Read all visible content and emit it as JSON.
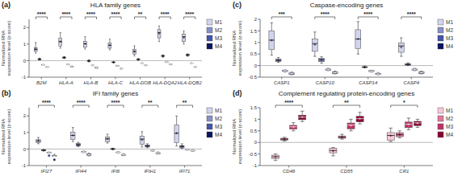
{
  "chart_data": [
    {
      "type": "box",
      "panel_label": "(a)",
      "title": "HLA family genes",
      "ylabel": "Normalized RNA\nexpression level (z-score)",
      "categories": [
        "B2M",
        "HLA-A",
        "HLA-B",
        "HLA-C",
        "HLA-DOB",
        "HLA-DQA2",
        "HLA-DQB2"
      ],
      "significance": [
        "****",
        "****",
        "****",
        "****",
        "**",
        "****",
        "****"
      ],
      "series": [
        {
          "name": "M1",
          "color": "#d0d4ec",
          "values": [
            {
              "whislo": 0.45,
              "q1": 0.5625,
              "med": 0.675,
              "q3": 0.7875,
              "whishi": 1.1,
              "mean": 0.7
            },
            {
              "whislo": 0.75,
              "q1": 0.875,
              "med": 1.15,
              "q3": 1.3625,
              "whishi": 1.7,
              "mean": 1.15
            },
            {
              "whislo": 0.7,
              "q1": 0.8075,
              "med": 1.015,
              "q3": 1.1625,
              "whishi": 1.45,
              "mean": 1.021667
            },
            {
              "whislo": 0.65,
              "q1": 0.75,
              "med": 0.925,
              "q3": 1.0625,
              "whishi": 1.3,
              "mean": 0.933333
            },
            {
              "whislo": 0.28,
              "q1": 0.4,
              "med": 0.55,
              "q3": 0.675,
              "whishi": 0.9,
              "mean": 0.554286
            },
            {
              "whislo": 1.15,
              "q1": 1.375,
              "med": 1.7,
              "q3": 1.875,
              "whishi": 2.1,
              "mean": 1.635714
            },
            {
              "whislo": 1.0,
              "q1": 1.15,
              "med": 1.45,
              "q3": 1.6,
              "whishi": 1.8,
              "mean": 1.392857
            }
          ]
        },
        {
          "name": "M2",
          "color": "#8890c8",
          "values": [
            {
              "whislo": 0.04,
              "q1": 0.05,
              "med": 0.08,
              "q3": 0.12,
              "whishi": 0.15,
              "mean": 0.088
            },
            {
              "whislo": 0.12,
              "q1": 0.15,
              "med": 0.18,
              "q3": 0.22,
              "whishi": 0.25,
              "mean": 0.184
            },
            {
              "whislo": -0.08,
              "q1": -0.05,
              "med": -0.02,
              "q3": 0.02,
              "whishi": 0.05,
              "mean": -0.016
            },
            {
              "whislo": -0.15,
              "q1": -0.12,
              "med": -0.1,
              "q3": -0.08,
              "whishi": -0.05,
              "mean": -0.1
            },
            {
              "whislo": 0.02,
              "q1": 0.05,
              "med": 0.08,
              "q3": 0.1,
              "whishi": 0.12,
              "mean": 0.074
            },
            {
              "whislo": 0.2,
              "q1": 0.25,
              "med": 0.28,
              "q3": 0.32,
              "whishi": 0.35,
              "mean": 0.28
            },
            {
              "whislo": 0.26,
              "q1": 0.3,
              "med": 0.34,
              "q3": 0.38,
              "whishi": 0.42,
              "mean": 0.34
            }
          ]
        },
        {
          "name": "M3",
          "color": "#4455aa",
          "values": [
            {
              "whislo": -0.28,
              "q1": -0.265,
              "med": -0.255,
              "q3": -0.2425,
              "whishi": -0.22,
              "mean": -0.2525
            },
            {
              "whislo": -0.26,
              "q1": -0.245,
              "med": -0.23,
              "q3": -0.215,
              "whishi": -0.2,
              "mean": -0.23
            },
            {
              "whislo": -0.32,
              "q1": -0.305,
              "med": -0.29,
              "q3": -0.2725,
              "whishi": -0.25,
              "mean": -0.2875
            },
            {
              "whislo": -0.35,
              "q1": -0.3275,
              "med": -0.31,
              "q3": -0.295,
              "whishi": -0.28,
              "mean": -0.3125
            },
            {
              "whislo": -0.18,
              "q1": -0.165,
              "med": -0.155,
              "q3": -0.1425,
              "whishi": -0.12,
              "mean": -0.1525
            },
            {
              "whislo": -0.12,
              "q1": -0.105,
              "med": -0.09,
              "q3": -0.075,
              "whishi": -0.06,
              "mean": -0.09
            },
            {
              "whislo": -0.18,
              "q1": -0.165,
              "med": -0.155,
              "q3": -0.1425,
              "whishi": -0.12,
              "mean": -0.1525
            }
          ]
        },
        {
          "name": "M4",
          "color": "#0a1560",
          "values": [
            {
              "whislo": -0.42,
              "q1": -0.405,
              "med": -0.39,
              "q3": -0.3725,
              "whishi": -0.35,
              "mean": -0.3875
            },
            {
              "whislo": -0.4,
              "q1": -0.385,
              "med": -0.365,
              "q3": -0.3425,
              "whishi": -0.32,
              "mean": -0.3625
            },
            {
              "whislo": -0.48,
              "q1": -0.4575,
              "med": -0.435,
              "q3": -0.41,
              "whishi": -0.38,
              "mean": -0.4325
            },
            {
              "whislo": -0.52,
              "q1": -0.505,
              "med": -0.49,
              "q3": -0.47,
              "whishi": -0.44,
              "mean": -0.485
            },
            {
              "whislo": -0.32,
              "q1": -0.305,
              "med": -0.29,
              "q3": -0.2725,
              "whishi": -0.25,
              "mean": -0.2875
            },
            {
              "whislo": -0.26,
              "q1": -0.245,
              "med": -0.23,
              "q3": -0.215,
              "whishi": -0.2,
              "mean": -0.23
            },
            {
              "whislo": -0.42,
              "q1": -0.405,
              "med": -0.39,
              "q3": -0.3725,
              "whishi": -0.35,
              "mean": -0.3875
            }
          ]
        }
      ],
      "hline": 0.0,
      "ylim": [
        -1,
        2.5
      ],
      "yticks": [
        -1,
        0,
        1,
        2
      ],
      "legend": "right"
    },
    {
      "type": "box",
      "panel_label": "(b)",
      "title": "IFI family genes",
      "ylabel": "Normalized RNA\nexpression level (z-score)",
      "categories": [
        "IFI27",
        "IFI44",
        "IFI6",
        "IFIH1",
        "IFI71"
      ],
      "significance": [
        "****",
        "****",
        "****",
        "**",
        "**"
      ],
      "series": [
        {
          "name": "M1",
          "color": "#d0d4ec",
          "values": [
            {
              "whislo": 0.32,
              "q1": 0.3775,
              "med": 0.49,
              "q3": 0.565,
              "whishi": 0.7,
              "mean": 0.488333
            },
            {
              "whislo": 0.45,
              "q1": 0.575,
              "med": 0.825,
              "q3": 1.025,
              "whishi": 1.3,
              "mean": 0.825
            },
            {
              "whislo": 0.36,
              "q1": 0.445,
              "med": 0.615,
              "q3": 0.725,
              "whishi": 0.9,
              "mean": 0.606667
            },
            {
              "whislo": 0.12,
              "q1": 0.3,
              "med": 0.6,
              "q3": 0.775,
              "whishi": 1.05,
              "mean": 0.56
            },
            {
              "whislo": 0.18,
              "q1": 0.3875,
              "med": 0.95,
              "q3": 1.45,
              "whishi": 2.0,
              "mean": 0.96625
            }
          ]
        },
        {
          "name": "M2",
          "color": "#8890c8",
          "values": [
            {
              "whislo": -0.12,
              "q1": -0.1,
              "med": -0.08,
              "q3": -0.05,
              "whishi": -0.03,
              "mean": -0.076
            },
            {
              "whislo": 0.14,
              "q1": 0.19,
              "med": 0.25,
              "q3": 0.3325,
              "whishi": 0.4,
              "mean": 0.261667
            },
            {
              "whislo": -0.05,
              "q1": -0.02,
              "med": 0.0,
              "q3": 0.03,
              "whishi": 0.05,
              "mean": 0.002
            },
            {
              "whislo": 0.08,
              "q1": 0.12,
              "med": 0.18,
              "q3": 0.25,
              "whishi": 0.32,
              "mean": 0.19
            },
            {
              "whislo": 0.04,
              "q1": 0.0725,
              "med": 0.16,
              "q3": 0.21,
              "whishi": 0.32,
              "mean": 0.158333
            }
          ]
        },
        {
          "name": "M3",
          "color": "#4455aa",
          "values": [
            {
              "whislo": -0.25,
              "q1": -0.25,
              "med": -0.22,
              "q3": -0.2,
              "whishi": -0.18,
              "mean": -0.25,
              "fliers": [
                -0.4
              ]
            },
            {
              "whislo": -0.22,
              "q1": -0.2,
              "med": -0.18,
              "q3": -0.15,
              "whishi": -0.12,
              "mean": -0.174
            },
            {
              "whislo": -0.24,
              "q1": -0.22,
              "med": -0.2,
              "q3": -0.18,
              "whishi": -0.16,
              "mean": -0.2
            },
            {
              "whislo": -0.14,
              "q1": -0.12,
              "med": -0.1,
              "q3": -0.08,
              "whishi": -0.06,
              "mean": -0.1
            },
            {
              "whislo": -0.08,
              "q1": -0.05,
              "med": -0.04,
              "q3": -0.02,
              "whishi": -0.01,
              "mean": -0.04
            }
          ]
        },
        {
          "name": "M4",
          "color": "#0a1560",
          "values": [
            {
              "whislo": -0.45,
              "q1": -0.45,
              "med": -0.42,
              "q3": -0.38,
              "whishi": -0.32,
              "mean": -0.444,
              "fliers": [
                -0.65
              ]
            },
            {
              "whislo": -0.42,
              "q1": -0.38,
              "med": -0.35,
              "q3": -0.3,
              "whishi": -0.25,
              "mean": -0.34
            },
            {
              "whislo": -0.4,
              "q1": -0.38,
              "med": -0.35,
              "q3": -0.32,
              "whishi": -0.28,
              "mean": -0.346
            },
            {
              "whislo": -0.3,
              "q1": -0.28,
              "med": -0.25,
              "q3": -0.22,
              "whishi": -0.18,
              "mean": -0.246
            },
            {
              "whislo": -0.15,
              "q1": -0.12,
              "med": -0.1,
              "q3": -0.08,
              "whishi": -0.06,
              "mean": -0.102
            }
          ]
        }
      ],
      "hline": 0.0,
      "ylim": [
        -1,
        2.5
      ],
      "yticks": [
        -1,
        0,
        1,
        2
      ],
      "legend": "right"
    },
    {
      "type": "box",
      "panel_label": "(c)",
      "title": "Caspase-encoding genes",
      "ylabel": "Normalized RNA\nexpression level (z-score)",
      "categories": [
        "CASP1",
        "CASP10",
        "CASP14",
        "CASP4"
      ],
      "significance": [
        "***",
        "****",
        "****",
        "****"
      ],
      "series": [
        {
          "name": "M1",
          "color": "#d0d4ec",
          "values": [
            {
              "whislo": 0.45,
              "q1": 0.6875,
              "med": 1.1,
              "q3": 1.5,
              "whishi": 1.85,
              "mean": 1.09375
            },
            {
              "whislo": 0.4,
              "q1": 0.615,
              "med": 0.95,
              "q3": 1.15,
              "whishi": 1.45,
              "mean": 0.904286
            },
            {
              "whislo": 0.5,
              "q1": 0.7375,
              "med": 1.15,
              "q3": 1.55,
              "whishi": 1.9,
              "mean": 1.14375
            },
            {
              "whislo": 0.4,
              "q1": 0.575,
              "med": 0.85,
              "q3": 0.975,
              "whishi": 1.2,
              "mean": 0.792857
            }
          ]
        },
        {
          "name": "M2",
          "color": "#8890c8",
          "values": [
            {
              "whislo": 0.14,
              "q1": 0.18,
              "med": 0.22,
              "q3": 0.28,
              "whishi": 0.35,
              "mean": 0.234
            },
            {
              "whislo": 0.1,
              "q1": 0.1675,
              "med": 0.25,
              "q3": 0.31,
              "whishi": 0.38,
              "mean": 0.241667
            },
            {
              "whislo": -0.1,
              "q1": -0.08,
              "med": -0.07,
              "q3": -0.05,
              "whishi": -0.02,
              "mean": -0.064
            },
            {
              "whislo": 0.0,
              "q1": 0.02,
              "med": 0.05,
              "q3": 0.08,
              "whishi": 0.12,
              "mean": 0.054
            }
          ]
        },
        {
          "name": "M3",
          "color": "#4455aa",
          "values": [
            {
              "whislo": -0.28,
              "q1": -0.25,
              "med": -0.22,
              "q3": -0.2,
              "whishi": -0.18,
              "mean": -0.226
            },
            {
              "whislo": -0.22,
              "q1": -0.2,
              "med": -0.18,
              "q3": -0.15,
              "whishi": -0.12,
              "mean": -0.174
            },
            {
              "whislo": -0.28,
              "q1": -0.2575,
              "med": -0.235,
              "q3": -0.215,
              "whishi": -0.2,
              "mean": -0.2375
            },
            {
              "whislo": -0.22,
              "q1": -0.2,
              "med": -0.18,
              "q3": -0.15,
              "whishi": -0.12,
              "mean": -0.174
            }
          ]
        },
        {
          "name": "M4",
          "color": "#0a1560",
          "values": [
            {
              "whislo": -0.4,
              "q1": -0.38,
              "med": -0.35,
              "q3": -0.32,
              "whishi": -0.28,
              "mean": -0.346
            },
            {
              "whislo": -0.36,
              "q1": -0.34,
              "med": -0.31,
              "q3": -0.28,
              "whishi": -0.24,
              "mean": -0.306
            },
            {
              "whislo": -0.4,
              "q1": -0.385,
              "med": -0.365,
              "q3": -0.3375,
              "whishi": -0.3,
              "mean": -0.3575
            },
            {
              "whislo": -0.36,
              "q1": -0.34,
              "med": -0.31,
              "q3": -0.28,
              "whishi": -0.24,
              "mean": -0.306
            }
          ]
        }
      ],
      "hline": 0.0,
      "ylim": [
        -0.5,
        2
      ],
      "yticks": [
        -0.5,
        0,
        0.5,
        1,
        1.5,
        2
      ],
      "legend": "right"
    },
    {
      "type": "box",
      "panel_label": "(d)",
      "title": "Complement regulating protein-encoding genes",
      "ylabel": "Normalized RNA\nexpression level (z-score)",
      "categories": [
        "CD46",
        "CD55",
        "CR1"
      ],
      "significance": [
        "****",
        "**",
        "*"
      ],
      "series": [
        {
          "name": "M1",
          "color": "#f8c8d8",
          "values": [
            {
              "whislo": -0.78,
              "q1": -0.7,
              "med": -0.62,
              "q3": -0.55,
              "whishi": -0.5,
              "mean": -0.63
            },
            {
              "whislo": -0.58,
              "q1": -0.45,
              "med": -0.35,
              "q3": -0.25,
              "whishi": -0.22,
              "mean": -0.37
            },
            {
              "whislo": 0.03,
              "q1": 0.1,
              "med": 0.3,
              "q3": 0.425,
              "whishi": 0.62,
              "mean": 0.291667
            }
          ]
        },
        {
          "name": "M2",
          "color": "#e07898",
          "values": [
            {
              "whislo": 0.06,
              "q1": 0.1,
              "med": 0.14,
              "q3": 0.18,
              "whishi": 0.22,
              "mean": 0.14
            },
            {
              "whislo": 0.14,
              "q1": 0.18,
              "med": 0.22,
              "q3": 0.28,
              "whishi": 0.35,
              "mean": 0.234
            },
            {
              "whislo": 0.2,
              "q1": 0.25,
              "med": 0.33,
              "q3": 0.42,
              "whishi": 0.5,
              "mean": 0.34
            }
          ]
        },
        {
          "name": "M3",
          "color": "#c03368",
          "values": [
            {
              "whislo": 0.5,
              "q1": 0.575,
              "med": 0.675,
              "q3": 0.7375,
              "whishi": 0.85,
              "mean": 0.666667
            },
            {
              "whislo": 0.5,
              "q1": 0.5875,
              "med": 0.75,
              "q3": 0.8375,
              "whishi": 1.0,
              "mean": 0.733333
            },
            {
              "whislo": 0.55,
              "q1": 0.6375,
              "med": 0.785,
              "q3": 0.88,
              "whishi": 1.05,
              "mean": 0.778333
            }
          ]
        },
        {
          "name": "M4",
          "color": "#8c0033",
          "values": [
            {
              "whislo": 0.9,
              "q1": 0.9825,
              "med": 1.09,
              "q3": 1.175,
              "whishi": 1.35,
              "mean": 1.096667
            },
            {
              "whislo": 0.8,
              "q1": 0.8875,
              "med": 1.025,
              "q3": 1.125,
              "whishi": 1.3,
              "mean": 1.025
            },
            {
              "whislo": 0.65,
              "q1": 0.7275,
              "med": 0.845,
              "q3": 0.91,
              "whishi": 1.0,
              "mean": 0.826667
            }
          ]
        }
      ],
      "hline": 0.0,
      "ylim": [
        -1,
        1.5
      ],
      "yticks": [
        -1,
        -0.5,
        0,
        0.5,
        1,
        1.5
      ],
      "legend": "right"
    }
  ]
}
